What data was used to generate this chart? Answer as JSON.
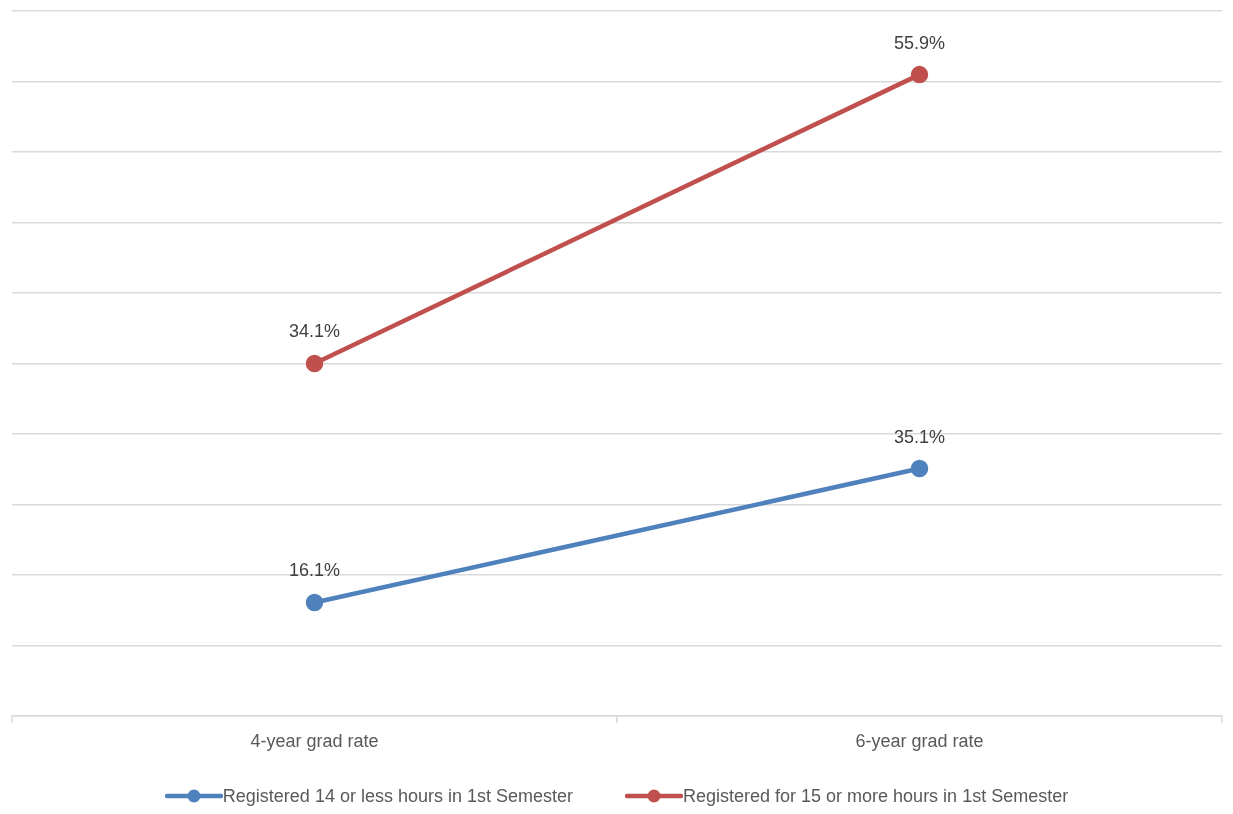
{
  "chart_data": {
    "type": "line",
    "categories": [
      "4-year grad rate",
      "6-year grad rate"
    ],
    "series": [
      {
        "name": "Registered 14 or less hours in 1st Semester",
        "color": "#4f81bd",
        "values": [
          16.1,
          35.1
        ],
        "value_labels": [
          "16.1%",
          "35.1%"
        ]
      },
      {
        "name": "Registered for 15 or more hours in 1st Semester",
        "color": "#c0504d",
        "values": [
          34.1,
          55.9
        ],
        "value_labels": [
          "34.1%",
          "55.9%"
        ],
        "axis": "y2"
      }
    ],
    "ylim": [
      0,
      100
    ],
    "yticks": [
      {
        "value": 0,
        "label": null
      },
      {
        "value": 10,
        "label": null
      },
      {
        "value": 20,
        "label": null
      },
      {
        "value": 30,
        "label": null
      },
      {
        "value": 40,
        "label": null
      },
      {
        "value": 50,
        "label": null
      },
      {
        "value": 60,
        "label": null
      },
      {
        "value": 70,
        "label": null
      },
      {
        "value": 80,
        "label": null
      },
      {
        "value": 90,
        "label": null
      },
      {
        "value": 100,
        "label": null
      }
    ],
    "y2lim": [
      7.5,
      60.7
    ],
    "grid": "y",
    "legend": "bottom",
    "marker": "circle",
    "line_style": "solid",
    "tick_labels": "x"
  }
}
